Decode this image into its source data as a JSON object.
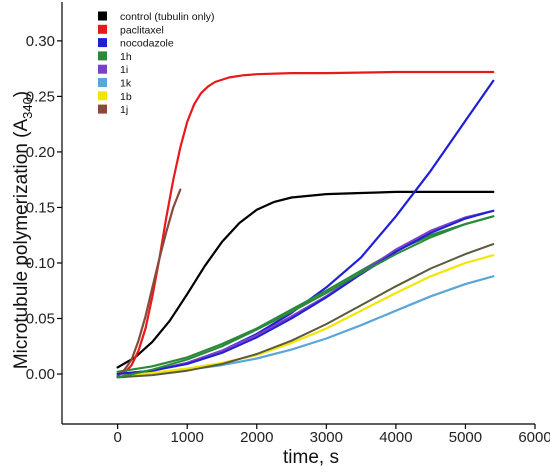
{
  "chart_data": {
    "type": "line",
    "title": "",
    "xlabel": "time, s",
    "ylabel_main": "Microtubule polymerization (A",
    "ylabel_sub": "340",
    "ylabel_close": ")",
    "xlim": [
      -800,
      6000
    ],
    "ylim": [
      -0.045,
      0.335
    ],
    "xticks": [
      0,
      1000,
      2000,
      3000,
      4000,
      5000,
      6000
    ],
    "xtick_labels": [
      "0",
      "1000",
      "2000",
      "3000",
      "4000",
      "5000",
      "6000"
    ],
    "yticks": [
      0.0,
      0.05,
      0.1,
      0.15,
      0.2,
      0.25,
      0.3
    ],
    "ytick_labels": [
      "0.00",
      "0.05",
      "0.10",
      "0.15",
      "0.20",
      "0.25",
      "0.30"
    ],
    "grid": false,
    "legend_position": "top-left",
    "series": [
      {
        "name": "control (tubulin only)",
        "color": "#000000",
        "x": [
          0,
          250,
          500,
          750,
          1000,
          1250,
          1500,
          1750,
          2000,
          2250,
          2500,
          3000,
          3500,
          4000,
          4500,
          5000,
          5400
        ],
        "y": [
          0.006,
          0.015,
          0.029,
          0.048,
          0.072,
          0.097,
          0.119,
          0.136,
          0.148,
          0.155,
          0.159,
          0.162,
          0.163,
          0.164,
          0.164,
          0.164,
          0.164
        ]
      },
      {
        "name": "paclitaxel",
        "color": "#e8191b",
        "x": [
          0,
          100,
          200,
          300,
          400,
          500,
          600,
          700,
          800,
          900,
          1000,
          1100,
          1200,
          1300,
          1400,
          1600,
          1800,
          2000,
          2500,
          3000,
          4000,
          5000,
          5400
        ],
        "y": [
          -0.002,
          0.001,
          0.008,
          0.021,
          0.041,
          0.07,
          0.104,
          0.141,
          0.175,
          0.204,
          0.227,
          0.243,
          0.253,
          0.259,
          0.263,
          0.267,
          0.269,
          0.27,
          0.271,
          0.271,
          0.272,
          0.272,
          0.272
        ]
      },
      {
        "name": "nocodazole",
        "color": "#1f1fd6",
        "x": [
          0,
          500,
          1000,
          1500,
          2000,
          2500,
          3000,
          3500,
          4000,
          4500,
          5000,
          5400
        ],
        "y": [
          0.0,
          0.003,
          0.01,
          0.021,
          0.036,
          0.055,
          0.078,
          0.105,
          0.142,
          0.183,
          0.228,
          0.264
        ]
      },
      {
        "name": "1h",
        "color": "#2a8a3a",
        "x": [
          0,
          500,
          1000,
          1500,
          2000,
          2500,
          3000,
          3500,
          4000,
          4500,
          5000,
          5400
        ],
        "y": [
          0.002,
          0.007,
          0.015,
          0.027,
          0.041,
          0.058,
          0.075,
          0.093,
          0.111,
          0.125,
          0.135,
          0.142
        ]
      },
      {
        "name": "1i",
        "color": "#7b3fc8",
        "x": [
          0,
          500,
          1000,
          1500,
          2000,
          2500,
          3000,
          3500,
          4000,
          4500,
          5000,
          5400
        ],
        "y": [
          0.0,
          0.003,
          0.01,
          0.021,
          0.035,
          0.052,
          0.07,
          0.091,
          0.112,
          0.129,
          0.141,
          0.147
        ]
      },
      {
        "name": "1k",
        "color": "#5aa6d8",
        "x": [
          0,
          500,
          1000,
          1500,
          2000,
          2500,
          3000,
          3500,
          4000,
          4500,
          5000,
          5400
        ],
        "y": [
          -0.001,
          0.001,
          0.004,
          0.008,
          0.014,
          0.022,
          0.032,
          0.044,
          0.057,
          0.07,
          0.081,
          0.088
        ]
      },
      {
        "name": "1b",
        "color": "#f2e600",
        "x": [
          0,
          500,
          1000,
          1500,
          2000,
          2500,
          3000,
          3500,
          4000,
          4500,
          5000,
          5400
        ],
        "y": [
          -0.002,
          0.001,
          0.005,
          0.01,
          0.017,
          0.028,
          0.041,
          0.057,
          0.073,
          0.088,
          0.1,
          0.107
        ]
      },
      {
        "name": "1j",
        "color": "#8a4a3a",
        "x": [
          0,
          100,
          200,
          300,
          400,
          500,
          600,
          700,
          800,
          900
        ],
        "y": [
          -0.002,
          0.004,
          0.013,
          0.03,
          0.052,
          0.078,
          0.104,
          0.128,
          0.15,
          0.166
        ]
      }
    ],
    "overlay_curves": [
      {
        "color": "#1f1fd6",
        "x": [
          0,
          500,
          1000,
          1500,
          2000,
          2500,
          3000,
          3500,
          4000,
          4500,
          5000,
          5400
        ],
        "y": [
          0.0,
          0.003,
          0.009,
          0.019,
          0.033,
          0.05,
          0.069,
          0.09,
          0.11,
          0.127,
          0.14,
          0.147
        ]
      },
      {
        "color": "#5a5a3a",
        "x": [
          0,
          500,
          1000,
          1500,
          2000,
          2500,
          3000,
          3500,
          4000,
          4500,
          5000,
          5400
        ],
        "y": [
          -0.003,
          -0.001,
          0.003,
          0.009,
          0.018,
          0.03,
          0.045,
          0.062,
          0.079,
          0.095,
          0.108,
          0.117
        ]
      },
      {
        "color": "#2a8a3a",
        "x": [
          0,
          500,
          1000,
          1500,
          2000,
          2500,
          3000,
          3500,
          4000,
          4500,
          5000,
          5400
        ],
        "y": [
          -0.003,
          0.004,
          0.013,
          0.025,
          0.04,
          0.056,
          0.073,
          0.091,
          0.108,
          0.123,
          0.135,
          0.142
        ]
      }
    ]
  }
}
